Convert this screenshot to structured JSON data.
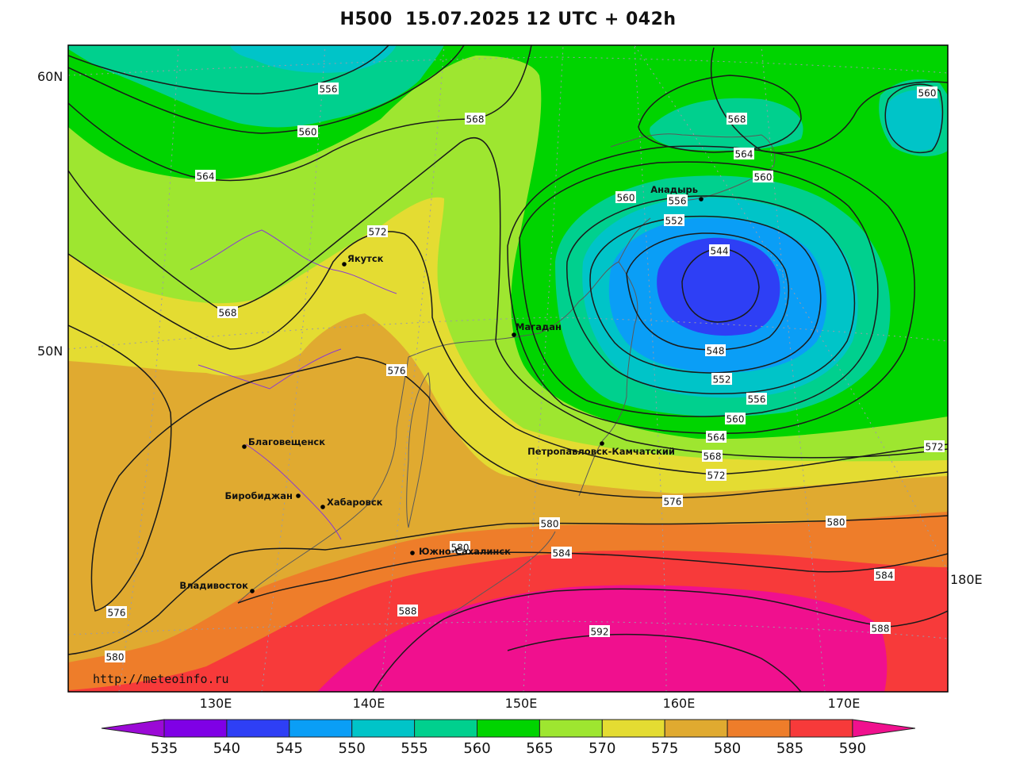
{
  "title": "H500  15.07.2025 12 UTC + 042h",
  "credit": "http://meteoinfo.ru",
  "colors": {
    "c535": "#9b0ad6",
    "c540": "#7f00e6",
    "c545": "#2e3ff5",
    "c550": "#0a9ef6",
    "c555": "#00c4c8",
    "c560": "#00d08e",
    "c565": "#00d400",
    "c570": "#9ee630",
    "c575": "#e4dc32",
    "c580": "#e0aa30",
    "c585": "#ee7d2a",
    "c590": "#f73a3a",
    "c595": "#f0108e"
  },
  "lat_labels": [
    "60N",
    "50N"
  ],
  "lon_labels": [
    "130E",
    "140E",
    "150E",
    "160E",
    "170E",
    "180E"
  ],
  "legend": {
    "values": [
      "535",
      "540",
      "545",
      "550",
      "555",
      "560",
      "565",
      "570",
      "575",
      "580",
      "585",
      "590"
    ],
    "colors": [
      "#9b0ad6",
      "#7f00e6",
      "#2e3ff5",
      "#0a9ef6",
      "#00c4c8",
      "#00d08e",
      "#00d400",
      "#9ee630",
      "#e4dc32",
      "#e0aa30",
      "#ee7d2a",
      "#f73a3a",
      "#f0108e"
    ]
  },
  "cities": [
    "Якутск",
    "Магадан",
    "Анадырь",
    "Благовещенск",
    "Биробиджан",
    "Хабаровск",
    "Петропавловск-Камчатский",
    "Южно-Сахалинск",
    "Владивосток"
  ],
  "contour_labels": [
    "556",
    "560",
    "564",
    "568",
    "572",
    "576",
    "580",
    "576",
    "580",
    "568",
    "568",
    "564",
    "560",
    "560",
    "556",
    "552",
    "544",
    "548",
    "552",
    "556",
    "560",
    "564",
    "568",
    "572",
    "576",
    "580",
    "584",
    "588",
    "592",
    "588",
    "584",
    "580",
    "572",
    "560"
  ]
}
